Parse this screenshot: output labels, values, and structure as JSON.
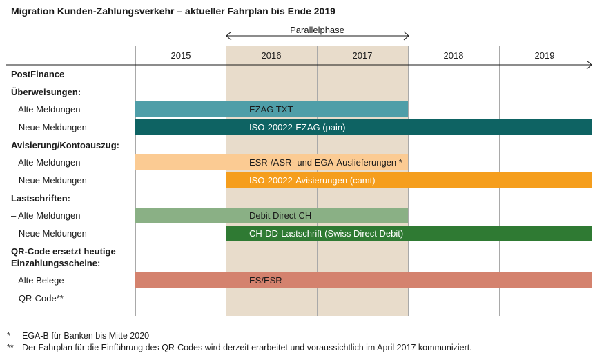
{
  "title": "Migration Kunden-Zahlungsverkehr – aktueller Fahrplan bis Ende 2019",
  "parallel_phase": "Parallelphase",
  "years": [
    "2015",
    "2016",
    "2017",
    "2018",
    "2019"
  ],
  "rows": [
    {
      "label": "PostFinance",
      "header": true
    },
    {
      "label": "Überweisungen:",
      "header": true
    },
    {
      "label": "– Alte Meldungen",
      "header": false
    },
    {
      "label": "– Neue Meldungen",
      "header": false
    },
    {
      "label": "Avisierung/Kontoauszug:",
      "header": true
    },
    {
      "label": "– Alte Meldungen",
      "header": false
    },
    {
      "label": "– Neue Meldungen",
      "header": false
    },
    {
      "label": "Lastschriften:",
      "header": true
    },
    {
      "label": "– Alte Meldungen",
      "header": false
    },
    {
      "label": "– Neue Meldungen",
      "header": false
    },
    {
      "label": "QR-Code ersetzt heutige",
      "header": true
    },
    {
      "label": "Einzahlungsscheine:",
      "header": true
    },
    {
      "label": "– Alte Belege",
      "header": false
    },
    {
      "label": "– QR-Code**",
      "header": false
    }
  ],
  "bars": [
    {
      "label": "EZAG TXT",
      "color": "#4f9ea8",
      "text_color": "#1a1a1a"
    },
    {
      "label": "ISO-20022-EZAG (pain)",
      "color": "#0e6363",
      "text_color": "#ffffff"
    },
    {
      "label": "ESR-/ASR- und EGA-Auslieferungen *",
      "color": "#fbcb93",
      "text_color": "#1a1a1a"
    },
    {
      "label": "ISO-20022-Avisierungen (camt)",
      "color": "#f59e1d",
      "text_color": "#ffffff"
    },
    {
      "label": "Debit Direct CH",
      "color": "#8ab085",
      "text_color": "#1a1a1a"
    },
    {
      "label": "CH-DD-Lastschrift (Swiss Direct Debit)",
      "color": "#2f7a33",
      "text_color": "#ffffff"
    },
    {
      "label": "ES/ESR",
      "color": "#d4826e",
      "text_color": "#1a1a1a"
    }
  ],
  "footnotes": [
    {
      "marker": "*",
      "text": "EGA-B für Banken bis Mitte 2020"
    },
    {
      "marker": "**",
      "text": "Der Fahrplan für die Einführung des QR-Codes wird derzeit erarbeitet und voraussichtlich im April 2017 kommuniziert."
    }
  ]
}
